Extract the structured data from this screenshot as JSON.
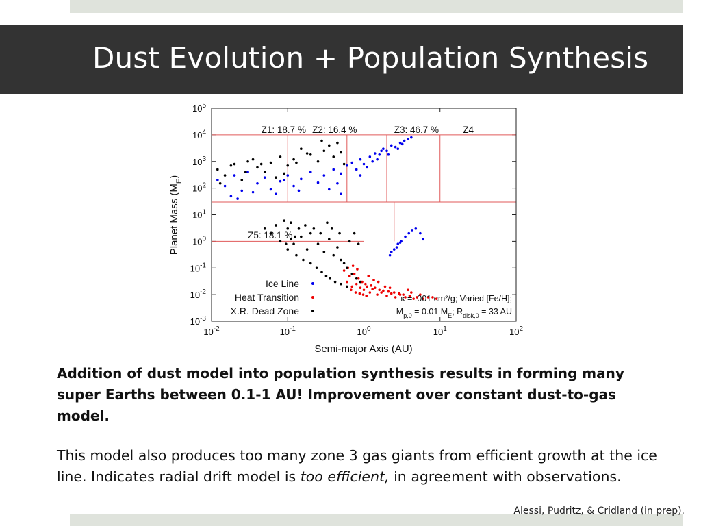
{
  "slide": {
    "title": "Dust Evolution + Population Synthesis",
    "bold_text": "Addition of dust model into population synthesis results in forming many super Earths between 0.1-1 AU! Improvement over constant dust-to-gas model.",
    "body_prefix": "This model also produces too many zone 3 gas giants from efficient growth at the ice line. Indicates radial drift model is ",
    "body_emphasis": "too efficient,",
    "body_suffix": " in agreement with observations.",
    "citation": "Alessi, Pudritz, & Cridland (in prep)."
  },
  "colors": {
    "title_bar": "#333333",
    "accent_bars": "#dfe3dc",
    "zone_lines": "#e05a5a",
    "ice_line": "#0000ee",
    "heat_transition": "#ee0000",
    "dead_zone": "#000000"
  },
  "chart_data": {
    "type": "scatter",
    "xlabel": "Semi-major Axis (AU)",
    "ylabel": "Planet Mass (M",
    "ylabel_sub": "E",
    "ylabel_close": ")",
    "x_scale": "log",
    "y_scale": "log",
    "xlim": [
      0.01,
      100
    ],
    "ylim": [
      0.001,
      100000
    ],
    "x_ticks": [
      {
        "value": 0.01,
        "base": "10",
        "exp": "-2"
      },
      {
        "value": 0.1,
        "base": "10",
        "exp": "-1"
      },
      {
        "value": 1,
        "base": "10",
        "exp": "0"
      },
      {
        "value": 10,
        "base": "10",
        "exp": "1"
      },
      {
        "value": 100,
        "base": "10",
        "exp": "2"
      }
    ],
    "y_ticks": [
      {
        "value": 0.001,
        "base": "10",
        "exp": "-3"
      },
      {
        "value": 0.01,
        "base": "10",
        "exp": "-2"
      },
      {
        "value": 0.1,
        "base": "10",
        "exp": "-1"
      },
      {
        "value": 1,
        "base": "10",
        "exp": "0"
      },
      {
        "value": 10,
        "base": "10",
        "exp": "1"
      },
      {
        "value": 100,
        "base": "10",
        "exp": "2"
      },
      {
        "value": 1000,
        "base": "10",
        "exp": "3"
      },
      {
        "value": 10000,
        "base": "10",
        "exp": "4"
      },
      {
        "value": 100000,
        "base": "10",
        "exp": "5"
      }
    ],
    "zone_labels": [
      {
        "text": "Z1: 18.7 %",
        "x": 0.045,
        "y": 12000
      },
      {
        "text": "Z2: 16.4 %",
        "x": 0.21,
        "y": 12000
      },
      {
        "text": "Z3: 46.7 %",
        "x": 2.5,
        "y": 12000
      },
      {
        "text": "Z4",
        "x": 20,
        "y": 12000
      },
      {
        "text": "Z5: 18.1 %",
        "x": 0.03,
        "y": 1.3
      }
    ],
    "zone_boundaries": [
      {
        "x1": 0.01,
        "y1": 10000,
        "x2": 100,
        "y2": 10000
      },
      {
        "x1": 0.01,
        "y1": 30,
        "x2": 100,
        "y2": 30
      },
      {
        "x1": 0.1,
        "y1": 30,
        "x2": 0.1,
        "y2": 10000
      },
      {
        "x1": 0.6,
        "y1": 30,
        "x2": 0.6,
        "y2": 10000
      },
      {
        "x1": 2,
        "y1": 30,
        "x2": 2,
        "y2": 10000
      },
      {
        "x1": 10,
        "y1": 30,
        "x2": 10,
        "y2": 10000
      },
      {
        "x1": 0.01,
        "y1": 1,
        "x2": 1,
        "y2": 1
      },
      {
        "x1": 2.5,
        "y1": 1,
        "x2": 2.5,
        "y2": 30
      }
    ],
    "annotation_lines": [
      {
        "text": "κ = .001 cm²/g; Varied [Fe/H];"
      },
      {
        "text": "M",
        "sub1": "p,0",
        "mid": " = 0.01 M",
        "sub2": "E",
        "mid2": "; R",
        "sub3": "disk,0",
        "tail": " = 33 AU"
      }
    ],
    "legend": {
      "position": "bottom-left",
      "entries": [
        "Ice Line",
        "Heat Transition",
        "X.R. Dead Zone"
      ]
    },
    "series": [
      {
        "name": "Ice Line",
        "color": "#0000ee",
        "points": [
          [
            0.012,
            200
          ],
          [
            0.015,
            120
          ],
          [
            0.02,
            300
          ],
          [
            0.025,
            80
          ],
          [
            0.03,
            400
          ],
          [
            0.04,
            150
          ],
          [
            0.05,
            250
          ],
          [
            0.06,
            90
          ],
          [
            0.08,
            180
          ],
          [
            0.1,
            300
          ],
          [
            0.12,
            120
          ],
          [
            0.15,
            220
          ],
          [
            0.2,
            400
          ],
          [
            0.25,
            160
          ],
          [
            0.3,
            300
          ],
          [
            0.4,
            500
          ],
          [
            0.5,
            350
          ],
          [
            0.6,
            700
          ],
          [
            0.7,
            900
          ],
          [
            0.8,
            500
          ],
          [
            0.9,
            1200
          ],
          [
            1.0,
            800
          ],
          [
            1.2,
            1500
          ],
          [
            1.4,
            2000
          ],
          [
            1.6,
            1800
          ],
          [
            1.8,
            3000
          ],
          [
            2.0,
            2500
          ],
          [
            2.3,
            4000
          ],
          [
            2.6,
            3500
          ],
          [
            3.0,
            5000
          ],
          [
            3.4,
            6000
          ],
          [
            3.8,
            7000
          ],
          [
            4.2,
            8000
          ],
          [
            0.018,
            50
          ],
          [
            0.022,
            40
          ],
          [
            0.035,
            70
          ],
          [
            0.07,
            60
          ],
          [
            0.09,
            200
          ],
          [
            0.14,
            80
          ],
          [
            0.35,
            90
          ],
          [
            0.45,
            150
          ],
          [
            1.1,
            600
          ],
          [
            1.3,
            1000
          ],
          [
            1.5,
            1200
          ],
          [
            1.7,
            2500
          ],
          [
            2.1,
            1800
          ],
          [
            2.8,
            3000
          ],
          [
            3.2,
            4500
          ],
          [
            0.5,
            60
          ],
          [
            0.9,
            300
          ],
          [
            2.2,
            0.3
          ],
          [
            2.5,
            0.5
          ],
          [
            2.8,
            0.8
          ],
          [
            3.1,
            1.0
          ],
          [
            3.5,
            1.5
          ],
          [
            3.9,
            2.0
          ],
          [
            4.3,
            2.5
          ],
          [
            4.8,
            3.0
          ],
          [
            5.5,
            2.0
          ],
          [
            6.0,
            1.2
          ],
          [
            2.3,
            0.4
          ],
          [
            2.7,
            0.6
          ],
          [
            3.0,
            0.9
          ]
        ]
      },
      {
        "name": "Heat Transition",
        "color": "#ee0000",
        "points": [
          [
            0.6,
            0.03
          ],
          [
            0.7,
            0.02
          ],
          [
            0.8,
            0.025
          ],
          [
            0.9,
            0.018
          ],
          [
            1.0,
            0.015
          ],
          [
            1.1,
            0.02
          ],
          [
            1.2,
            0.012
          ],
          [
            1.3,
            0.016
          ],
          [
            1.5,
            0.01
          ],
          [
            1.7,
            0.012
          ],
          [
            2.0,
            0.009
          ],
          [
            2.3,
            0.011
          ],
          [
            2.6,
            0.008
          ],
          [
            3.0,
            0.01
          ],
          [
            3.5,
            0.008
          ],
          [
            4.0,
            0.009
          ],
          [
            4.5,
            0.007
          ],
          [
            5.0,
            0.008
          ],
          [
            6.0,
            0.007
          ],
          [
            0.65,
            0.05
          ],
          [
            0.75,
            0.06
          ],
          [
            0.85,
            0.04
          ],
          [
            0.95,
            0.03
          ],
          [
            1.05,
            0.025
          ],
          [
            1.25,
            0.022
          ],
          [
            1.4,
            0.018
          ],
          [
            1.6,
            0.015
          ],
          [
            1.8,
            0.014
          ],
          [
            2.1,
            0.013
          ],
          [
            2.5,
            0.012
          ],
          [
            2.9,
            0.011
          ],
          [
            3.3,
            0.01
          ],
          [
            0.55,
            0.08
          ],
          [
            0.62,
            0.1
          ],
          [
            0.72,
            0.12
          ],
          [
            0.82,
            0.09
          ],
          [
            1.15,
            0.05
          ],
          [
            1.35,
            0.035
          ],
          [
            1.55,
            0.03
          ],
          [
            1.9,
            0.02
          ],
          [
            2.2,
            0.018
          ],
          [
            0.68,
            0.015
          ],
          [
            0.78,
            0.012
          ],
          [
            0.88,
            0.011
          ],
          [
            0.98,
            0.01
          ],
          [
            1.08,
            0.009
          ],
          [
            3.8,
            0.015
          ],
          [
            4.2,
            0.012
          ],
          [
            5.5,
            0.01
          ],
          [
            7.0,
            0.008
          ],
          [
            8.0,
            0.008
          ],
          [
            9.0,
            0.007
          ]
        ]
      },
      {
        "name": "X.R. Dead Zone",
        "color": "#000000",
        "points": [
          [
            0.012,
            500
          ],
          [
            0.015,
            300
          ],
          [
            0.02,
            800
          ],
          [
            0.025,
            200
          ],
          [
            0.03,
            1000
          ],
          [
            0.04,
            600
          ],
          [
            0.05,
            400
          ],
          [
            0.06,
            900
          ],
          [
            0.08,
            1500
          ],
          [
            0.1,
            700
          ],
          [
            0.12,
            1200
          ],
          [
            0.15,
            3000
          ],
          [
            0.2,
            1800
          ],
          [
            0.25,
            1000
          ],
          [
            0.3,
            2500
          ],
          [
            0.4,
            1500
          ],
          [
            0.5,
            2200
          ],
          [
            0.55,
            800
          ],
          [
            0.45,
            5000
          ],
          [
            0.35,
            4000
          ],
          [
            0.28,
            6000
          ],
          [
            0.18,
            2000
          ],
          [
            0.13,
            900
          ],
          [
            0.09,
            350
          ],
          [
            0.07,
            250
          ],
          [
            0.045,
            800
          ],
          [
            0.035,
            1200
          ],
          [
            0.028,
            400
          ],
          [
            0.018,
            700
          ],
          [
            0.013,
            150
          ],
          [
            0.06,
            2
          ],
          [
            0.08,
            1
          ],
          [
            0.1,
            3
          ],
          [
            0.12,
            0.8
          ],
          [
            0.15,
            1.5
          ],
          [
            0.18,
            0.5
          ],
          [
            0.2,
            2
          ],
          [
            0.25,
            0.8
          ],
          [
            0.3,
            0.4
          ],
          [
            0.35,
            1.2
          ],
          [
            0.4,
            0.3
          ],
          [
            0.45,
            0.6
          ],
          [
            0.5,
            0.2
          ],
          [
            0.55,
            0.15
          ],
          [
            0.6,
            0.1
          ],
          [
            0.7,
            0.06
          ],
          [
            0.8,
            0.04
          ],
          [
            0.9,
            0.03
          ],
          [
            0.1,
            0.5
          ],
          [
            0.13,
            0.3
          ],
          [
            0.16,
            0.2
          ],
          [
            0.2,
            0.15
          ],
          [
            0.24,
            0.1
          ],
          [
            0.28,
            0.07
          ],
          [
            0.32,
            0.05
          ],
          [
            0.36,
            0.04
          ],
          [
            0.42,
            0.03
          ],
          [
            0.5,
            0.025
          ],
          [
            0.6,
            0.02
          ],
          [
            0.05,
            3
          ],
          [
            0.07,
            4
          ],
          [
            0.09,
            6
          ],
          [
            0.11,
            5
          ],
          [
            0.14,
            3
          ],
          [
            0.17,
            4
          ],
          [
            0.22,
            3
          ],
          [
            0.27,
            2
          ],
          [
            0.33,
            5
          ],
          [
            0.38,
            3
          ],
          [
            0.48,
            2
          ],
          [
            0.65,
            1
          ],
          [
            0.75,
            2
          ],
          [
            0.85,
            0.8
          ],
          [
            0.095,
            0.8
          ],
          [
            0.11,
            1.2
          ],
          [
            0.125,
            1.5
          ]
        ]
      }
    ]
  }
}
